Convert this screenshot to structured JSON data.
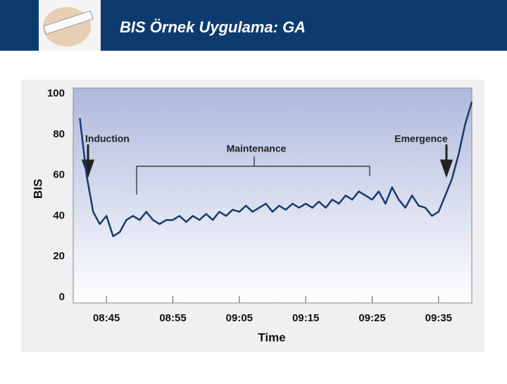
{
  "header": {
    "title": "BIS Örnek Uygulama:  GA"
  },
  "chart_data": {
    "type": "line",
    "y_label": "BIS",
    "x_label": "Time",
    "annotations": [
      "Induction",
      "Maintenance",
      "Emergence"
    ],
    "x": [
      "08:41",
      "08:42",
      "08:43",
      "08:44",
      "08:45",
      "08:46",
      "08:47",
      "08:48",
      "08:49",
      "08:50",
      "08:51",
      "08:52",
      "08:53",
      "08:54",
      "08:55",
      "08:56",
      "08:57",
      "08:58",
      "08:59",
      "09:00",
      "09:01",
      "09:02",
      "09:03",
      "09:04",
      "09:05",
      "09:06",
      "09:07",
      "09:08",
      "09:09",
      "09:10",
      "09:11",
      "09:12",
      "09:13",
      "09:14",
      "09:15",
      "09:16",
      "09:17",
      "09:18",
      "09:19",
      "09:20",
      "09:21",
      "09:22",
      "09:23",
      "09:24",
      "09:25",
      "09:26",
      "09:27",
      "09:28",
      "09:29",
      "09:30",
      "09:31",
      "09:32",
      "09:33",
      "09:34",
      "09:35",
      "09:36",
      "09:37",
      "09:38",
      "09:39",
      "09:40"
    ],
    "series": [
      {
        "name": "BIS",
        "color": "#1a3a6b",
        "values": [
          88,
          60,
          42,
          36,
          40,
          30,
          32,
          38,
          40,
          38,
          42,
          38,
          36,
          38,
          38,
          40,
          37,
          40,
          38,
          41,
          38,
          42,
          40,
          43,
          42,
          45,
          42,
          44,
          46,
          42,
          45,
          43,
          46,
          44,
          46,
          44,
          47,
          44,
          48,
          46,
          50,
          48,
          52,
          50,
          48,
          52,
          46,
          54,
          48,
          44,
          50,
          45,
          44,
          40,
          42,
          50,
          58,
          70,
          85,
          96
        ]
      }
    ],
    "xlim": [
      "08:40",
      "09:40"
    ],
    "xticks": [
      "08:45",
      "08:55",
      "09:05",
      "09:15",
      "09:25",
      "09:35"
    ],
    "ylim": [
      0,
      100
    ],
    "yticks": [
      0,
      20,
      40,
      60,
      80,
      100
    ],
    "grid": true
  }
}
